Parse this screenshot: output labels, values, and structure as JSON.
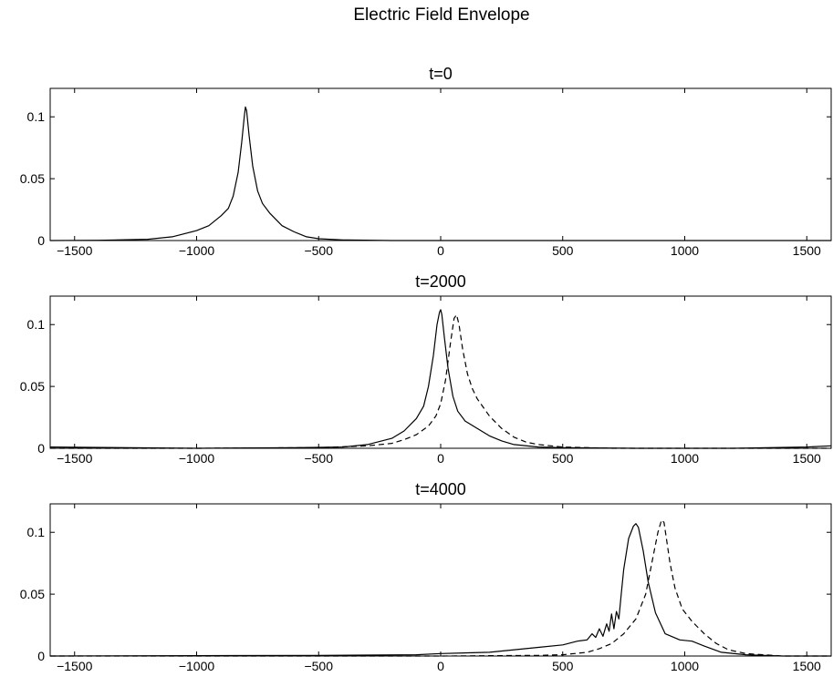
{
  "title": "Electric Field Envelope",
  "chart_data": [
    {
      "type": "line",
      "title": "t=0",
      "xlim": [
        -1600,
        1600
      ],
      "ylim": [
        0,
        0.123
      ],
      "xticks": [
        -1500,
        -1000,
        -500,
        0,
        500,
        1000,
        1500
      ],
      "xtick_labels": [
        "−1500",
        "−1000",
        "−500",
        "0",
        "500",
        "1000",
        "1500"
      ],
      "yticks": [
        0,
        0.05,
        0.1
      ],
      "ytick_labels": [
        "0",
        "0.05",
        "0.1"
      ],
      "grid": false,
      "series": [
        {
          "style": "solid",
          "color": "#000000",
          "x": [
            -1600,
            -1400,
            -1200,
            -1100,
            -1000,
            -950,
            -900,
            -870,
            -850,
            -830,
            -815,
            -805,
            -800,
            -795,
            -785,
            -770,
            -750,
            -730,
            -700,
            -650,
            -600,
            -550,
            -500,
            -400,
            -200,
            0,
            500,
            1000,
            1600
          ],
          "y": [
            0,
            0.0002,
            0.001,
            0.003,
            0.008,
            0.012,
            0.02,
            0.026,
            0.036,
            0.055,
            0.08,
            0.1,
            0.108,
            0.105,
            0.085,
            0.06,
            0.04,
            0.03,
            0.022,
            0.012,
            0.007,
            0.003,
            0.0015,
            0.0005,
            0,
            0,
            0,
            0,
            0
          ]
        }
      ]
    },
    {
      "type": "line",
      "title": "t=2000",
      "xlim": [
        -1600,
        1600
      ],
      "ylim": [
        0,
        0.123
      ],
      "xticks": [
        -1500,
        -1000,
        -500,
        0,
        500,
        1000,
        1500
      ],
      "xtick_labels": [
        "−1500",
        "−1000",
        "−500",
        "0",
        "500",
        "1000",
        "1500"
      ],
      "yticks": [
        0,
        0.05,
        0.1
      ],
      "ytick_labels": [
        "0",
        "0.05",
        "0.1"
      ],
      "grid": false,
      "series": [
        {
          "style": "solid",
          "color": "#000000",
          "x": [
            -1600,
            -1000,
            -600,
            -400,
            -300,
            -200,
            -150,
            -100,
            -70,
            -50,
            -30,
            -15,
            -5,
            0,
            5,
            15,
            30,
            50,
            70,
            100,
            150,
            200,
            250,
            300,
            400,
            500,
            800,
            1200,
            1500,
            1600
          ],
          "y": [
            0.001,
            0,
            0.0005,
            0.001,
            0.003,
            0.008,
            0.014,
            0.024,
            0.034,
            0.05,
            0.075,
            0.1,
            0.11,
            0.112,
            0.108,
            0.09,
            0.065,
            0.042,
            0.03,
            0.022,
            0.016,
            0.01,
            0.006,
            0.003,
            0.001,
            0.0005,
            0,
            0,
            0.001,
            0.002
          ]
        },
        {
          "style": "dashed",
          "color": "#000000",
          "x": [
            -1600,
            -1000,
            -500,
            -300,
            -200,
            -150,
            -100,
            -50,
            -20,
            0,
            20,
            40,
            55,
            65,
            75,
            90,
            110,
            130,
            150,
            200,
            250,
            300,
            350,
            400,
            500,
            700,
            1000,
            1600
          ],
          "y": [
            0,
            0,
            0.0005,
            0.002,
            0.004,
            0.007,
            0.011,
            0.018,
            0.026,
            0.036,
            0.055,
            0.085,
            0.105,
            0.108,
            0.1,
            0.08,
            0.06,
            0.048,
            0.04,
            0.026,
            0.016,
            0.009,
            0.005,
            0.003,
            0.001,
            0,
            0,
            0
          ]
        }
      ]
    },
    {
      "type": "line",
      "title": "t=4000",
      "xlim": [
        -1600,
        1600
      ],
      "ylim": [
        0,
        0.123
      ],
      "xticks": [
        -1500,
        -1000,
        -500,
        0,
        500,
        1000,
        1500
      ],
      "xtick_labels": [
        "−1500",
        "−1000",
        "−500",
        "0",
        "500",
        "1000",
        "1500"
      ],
      "yticks": [
        0,
        0.05,
        0.1
      ],
      "ytick_labels": [
        "0",
        "0.05",
        "0.1"
      ],
      "grid": false,
      "series": [
        {
          "style": "solid",
          "color": "#000000",
          "x": [
            -1600,
            -500,
            -100,
            0,
            200,
            400,
            500,
            560,
            600,
            620,
            635,
            650,
            665,
            680,
            690,
            700,
            710,
            720,
            730,
            740,
            750,
            770,
            790,
            800,
            810,
            830,
            850,
            880,
            920,
            980,
            1030,
            1080,
            1150,
            1250,
            1400,
            1600
          ],
          "y": [
            0,
            0.0005,
            0.001,
            0.002,
            0.003,
            0.007,
            0.009,
            0.012,
            0.013,
            0.018,
            0.015,
            0.022,
            0.016,
            0.026,
            0.02,
            0.034,
            0.022,
            0.036,
            0.03,
            0.05,
            0.07,
            0.095,
            0.105,
            0.107,
            0.104,
            0.085,
            0.06,
            0.035,
            0.018,
            0.013,
            0.012,
            0.008,
            0.003,
            0.001,
            0,
            0
          ]
        },
        {
          "style": "dashed",
          "color": "#000000",
          "x": [
            -1600,
            0,
            400,
            500,
            600,
            650,
            700,
            750,
            800,
            840,
            870,
            890,
            905,
            915,
            925,
            940,
            960,
            990,
            1030,
            1080,
            1130,
            1180,
            1250,
            1400,
            1600
          ],
          "y": [
            0,
            0,
            0.0005,
            0.001,
            0.003,
            0.006,
            0.01,
            0.018,
            0.03,
            0.05,
            0.08,
            0.1,
            0.11,
            0.108,
            0.095,
            0.075,
            0.055,
            0.038,
            0.028,
            0.018,
            0.01,
            0.005,
            0.002,
            0,
            0
          ]
        }
      ]
    }
  ]
}
